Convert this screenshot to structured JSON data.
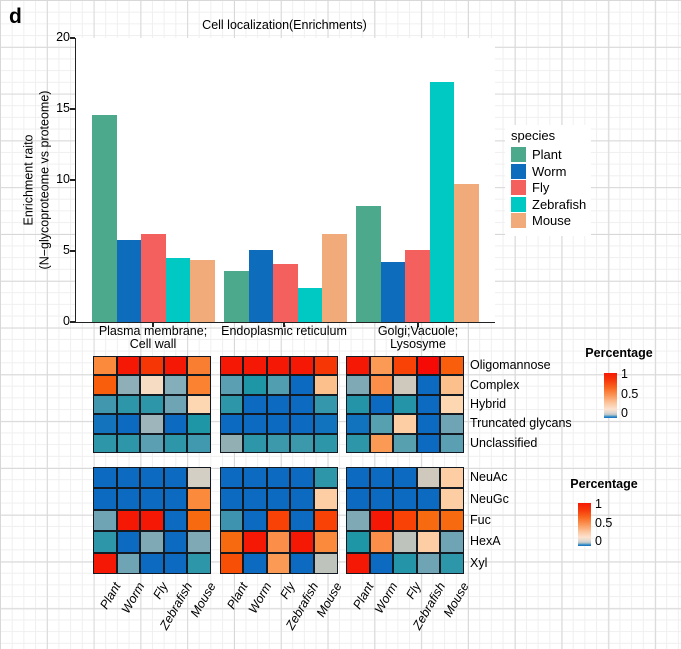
{
  "panel_label": "d",
  "chart_data": [
    {
      "type": "bar",
      "title": "Cell localization(Enrichments)",
      "ylabel_lines": [
        "Enrichment raito",
        "(N−glycoproteome vs proteome)"
      ],
      "yticks": [
        0,
        5,
        10,
        15,
        20
      ],
      "ylim": [
        0,
        20
      ],
      "categories": [
        "Plasma membrane; Cell wall",
        "Endoplasmic reticulum",
        "Golgi;Vacuole; Lysosyme"
      ],
      "category_label_lines": [
        [
          "Plasma membrane;",
          "Cell wall"
        ],
        [
          "Endoplasmic reticulum"
        ],
        [
          "Golgi;Vacuole;",
          "Lysosyme"
        ]
      ],
      "legend_title": "species",
      "legend_position": "right",
      "grid": false,
      "series": [
        {
          "name": "Plant",
          "color": "#4ca98c",
          "values": [
            14.6,
            3.6,
            8.2
          ]
        },
        {
          "name": "Worm",
          "color": "#0e6cbd",
          "values": [
            5.8,
            5.1,
            4.2
          ]
        },
        {
          "name": "Fly",
          "color": "#f4605d",
          "values": [
            6.2,
            4.1,
            5.1
          ]
        },
        {
          "name": "Zebrafish",
          "color": "#00c9c4",
          "values": [
            4.5,
            2.4,
            16.9
          ]
        },
        {
          "name": "Mouse",
          "color": "#f1aa79",
          "values": [
            4.4,
            6.2,
            9.7
          ]
        }
      ]
    },
    {
      "type": "heatmap",
      "legend_title": "Percentage",
      "legend_ticks": [
        "1",
        "0.5",
        "0"
      ],
      "scale": {
        "high": {
          "value": 1,
          "color": "#f51905"
        },
        "mid": {
          "value": 0.5,
          "color": "#fba169"
        },
        "low": {
          "value": 0,
          "color": "#0c6bc0"
        }
      },
      "columns": [
        "Plant",
        "Worm",
        "Fly",
        "Zebrafish",
        "Mouse"
      ],
      "panel_titles": [
        "Plasma membrane; Cell wall",
        "Endoplasmic reticulum",
        "Golgi;Vacuole; Lysosyme"
      ],
      "row_groups": [
        {
          "rows": [
            "Oligomannose",
            "Complex",
            "Hybrid",
            "Truncated glycans",
            "Unclassified"
          ],
          "panels": [
            {
              "colors": [
                [
                  "#fb8a3c",
                  "#f51905",
                  "#f63705",
                  "#f51905",
                  "#fa7e31"
                ],
                [
                  "#f85e0b",
                  "#8fafb8",
                  "#f5dcc3",
                  "#85aebb",
                  "#fa8231"
                ],
                [
                  "#4197ae",
                  "#2e96a9",
                  "#2e96a9",
                  "#6fa4b4",
                  "#fdd6b2"
                ],
                [
                  "#1373bd",
                  "#0c6bc0",
                  "#9eb6bb",
                  "#0c6bc0",
                  "#1e96a5"
                ],
                [
                  "#2e96a9",
                  "#2e96a9",
                  "#5ba0b2",
                  "#2e96a9",
                  "#4099ae"
                ]
              ],
              "values": [
                [
                  0.65,
                  1.0,
                  0.9,
                  1.0,
                  0.65
                ],
                [
                  0.75,
                  0.1,
                  0.3,
                  0.1,
                  0.65
                ],
                [
                  0.05,
                  0.04,
                  0.04,
                  0.08,
                  0.35
                ],
                [
                  0.01,
                  0.0,
                  0.1,
                  0.0,
                  0.03
                ],
                [
                  0.04,
                  0.04,
                  0.06,
                  0.04,
                  0.05
                ]
              ]
            },
            {
              "colors": [
                [
                  "#f51905",
                  "#f51905",
                  "#f51905",
                  "#f51905",
                  "#f63705"
                ],
                [
                  "#5ba0b2",
                  "#1e96a5",
                  "#519eb0",
                  "#0c6bc0",
                  "#fbc08c"
                ],
                [
                  "#2e96a9",
                  "#0c6bc0",
                  "#0c6bc0",
                  "#0c6bc0",
                  "#3597ab"
                ],
                [
                  "#0c6bc0",
                  "#0c6bc0",
                  "#0c6bc0",
                  "#0c6bc0",
                  "#1173bd"
                ],
                [
                  "#92b0b3",
                  "#2e96a9",
                  "#3c99ac",
                  "#3c99ac",
                  "#2e96a9"
                ]
              ],
              "values": [
                [
                  1.0,
                  1.0,
                  1.0,
                  1.0,
                  0.9
                ],
                [
                  0.06,
                  0.03,
                  0.06,
                  0.0,
                  0.45
                ],
                [
                  0.04,
                  0.0,
                  0.0,
                  0.0,
                  0.04
                ],
                [
                  0.0,
                  0.0,
                  0.0,
                  0.0,
                  0.01
                ],
                [
                  0.1,
                  0.04,
                  0.05,
                  0.05,
                  0.04
                ]
              ]
            },
            {
              "colors": [
                [
                  "#f51905",
                  "#fb9a55",
                  "#f84206",
                  "#f50a05",
                  "#f85e0b"
                ],
                [
                  "#7fa9b5",
                  "#fb8f4a",
                  "#cfc9bd",
                  "#0c6bc0",
                  "#fbc08c"
                ],
                [
                  "#2495a8",
                  "#0c6bc0",
                  "#2495a8",
                  "#0c6bc0",
                  "#fdd6b2"
                ],
                [
                  "#1173bd",
                  "#57a0b0",
                  "#fdcda4",
                  "#0c6bc0",
                  "#6fa4b4"
                ],
                [
                  "#2e96a9",
                  "#fb9a55",
                  "#57a0b0",
                  "#0c6bc0",
                  "#5ba0b2"
                ]
              ],
              "values": [
                [
                  1.0,
                  0.6,
                  0.85,
                  1.0,
                  0.75
                ],
                [
                  0.08,
                  0.6,
                  0.2,
                  0.0,
                  0.45
                ],
                [
                  0.04,
                  0.0,
                  0.04,
                  0.0,
                  0.35
                ],
                [
                  0.01,
                  0.06,
                  0.35,
                  0.0,
                  0.08
                ],
                [
                  0.04,
                  0.6,
                  0.06,
                  0.0,
                  0.06
                ]
              ]
            }
          ]
        },
        {
          "rows": [
            "NeuAc",
            "NeuGc",
            "Fuc",
            "HexA",
            "Xyl"
          ],
          "panels": [
            {
              "colors": [
                [
                  "#0c6bc0",
                  "#0c6bc0",
                  "#0c6bc0",
                  "#0c6bc0",
                  "#d3cfc5"
                ],
                [
                  "#0c6bc0",
                  "#0c6bc0",
                  "#0c6bc0",
                  "#0c6bc0",
                  "#fb8a3c"
                ],
                [
                  "#6fa4b4",
                  "#f51905",
                  "#f51905",
                  "#0c6bc0",
                  "#f86a10"
                ],
                [
                  "#2e96a9",
                  "#0c6bc0",
                  "#7fa9b5",
                  "#0c6bc0",
                  "#7fa9b5"
                ],
                [
                  "#f51905",
                  "#6fa4b4",
                  "#0c6bc0",
                  "#0c6bc0",
                  "#2e96a9"
                ]
              ],
              "values": [
                [
                  0.0,
                  0.0,
                  0.0,
                  0.0,
                  0.2
                ],
                [
                  0.0,
                  0.0,
                  0.0,
                  0.0,
                  0.65
                ],
                [
                  0.08,
                  1.0,
                  1.0,
                  0.0,
                  0.75
                ],
                [
                  0.04,
                  0.0,
                  0.08,
                  0.0,
                  0.08
                ],
                [
                  1.0,
                  0.08,
                  0.0,
                  0.0,
                  0.04
                ]
              ]
            },
            {
              "colors": [
                [
                  "#0c6bc0",
                  "#0c6bc0",
                  "#0c6bc0",
                  "#0c6bc0",
                  "#2e96a9"
                ],
                [
                  "#0c6bc0",
                  "#0c6bc0",
                  "#0c6bc0",
                  "#0c6bc0",
                  "#fdcda4"
                ],
                [
                  "#3e93ae",
                  "#0c6bc0",
                  "#f84206",
                  "#0c6bc0",
                  "#f84206"
                ],
                [
                  "#f86a10",
                  "#f51905",
                  "#fb8f4a",
                  "#f51905",
                  "#fb8a3c"
                ],
                [
                  "#f84f06",
                  "#0c6bc0",
                  "#fb9a55",
                  "#0c6bc0",
                  "#bec3bc"
                ]
              ],
              "values": [
                [
                  0.0,
                  0.0,
                  0.0,
                  0.0,
                  0.04
                ],
                [
                  0.0,
                  0.0,
                  0.0,
                  0.0,
                  0.35
                ],
                [
                  0.05,
                  0.0,
                  0.85,
                  0.0,
                  0.85
                ],
                [
                  0.75,
                  1.0,
                  0.6,
                  1.0,
                  0.65
                ],
                [
                  0.8,
                  0.0,
                  0.6,
                  0.0,
                  0.15
                ]
              ]
            },
            {
              "colors": [
                [
                  "#0c6bc0",
                  "#0c6bc0",
                  "#0c6bc0",
                  "#cfc9bd",
                  "#fdcda4"
                ],
                [
                  "#0c6bc0",
                  "#0c6bc0",
                  "#0c6bc0",
                  "#0c6bc0",
                  "#fdcda4"
                ],
                [
                  "#7fa9b5",
                  "#f51905",
                  "#f84206",
                  "#f86a10",
                  "#f86a10"
                ],
                [
                  "#1e96a5",
                  "#fb8f4a",
                  "#bec3bc",
                  "#fdcda4",
                  "#6fa4b4"
                ],
                [
                  "#f51905",
                  "#0c6bc0",
                  "#2495a8",
                  "#6fa4b4",
                  "#2e96a9"
                ]
              ],
              "values": [
                [
                  0.0,
                  0.0,
                  0.0,
                  0.2,
                  0.35
                ],
                [
                  0.0,
                  0.0,
                  0.0,
                  0.0,
                  0.35
                ],
                [
                  0.08,
                  1.0,
                  0.85,
                  0.75,
                  0.75
                ],
                [
                  0.03,
                  0.6,
                  0.15,
                  0.35,
                  0.08
                ],
                [
                  1.0,
                  0.0,
                  0.04,
                  0.08,
                  0.04
                ]
              ]
            }
          ]
        }
      ]
    }
  ]
}
